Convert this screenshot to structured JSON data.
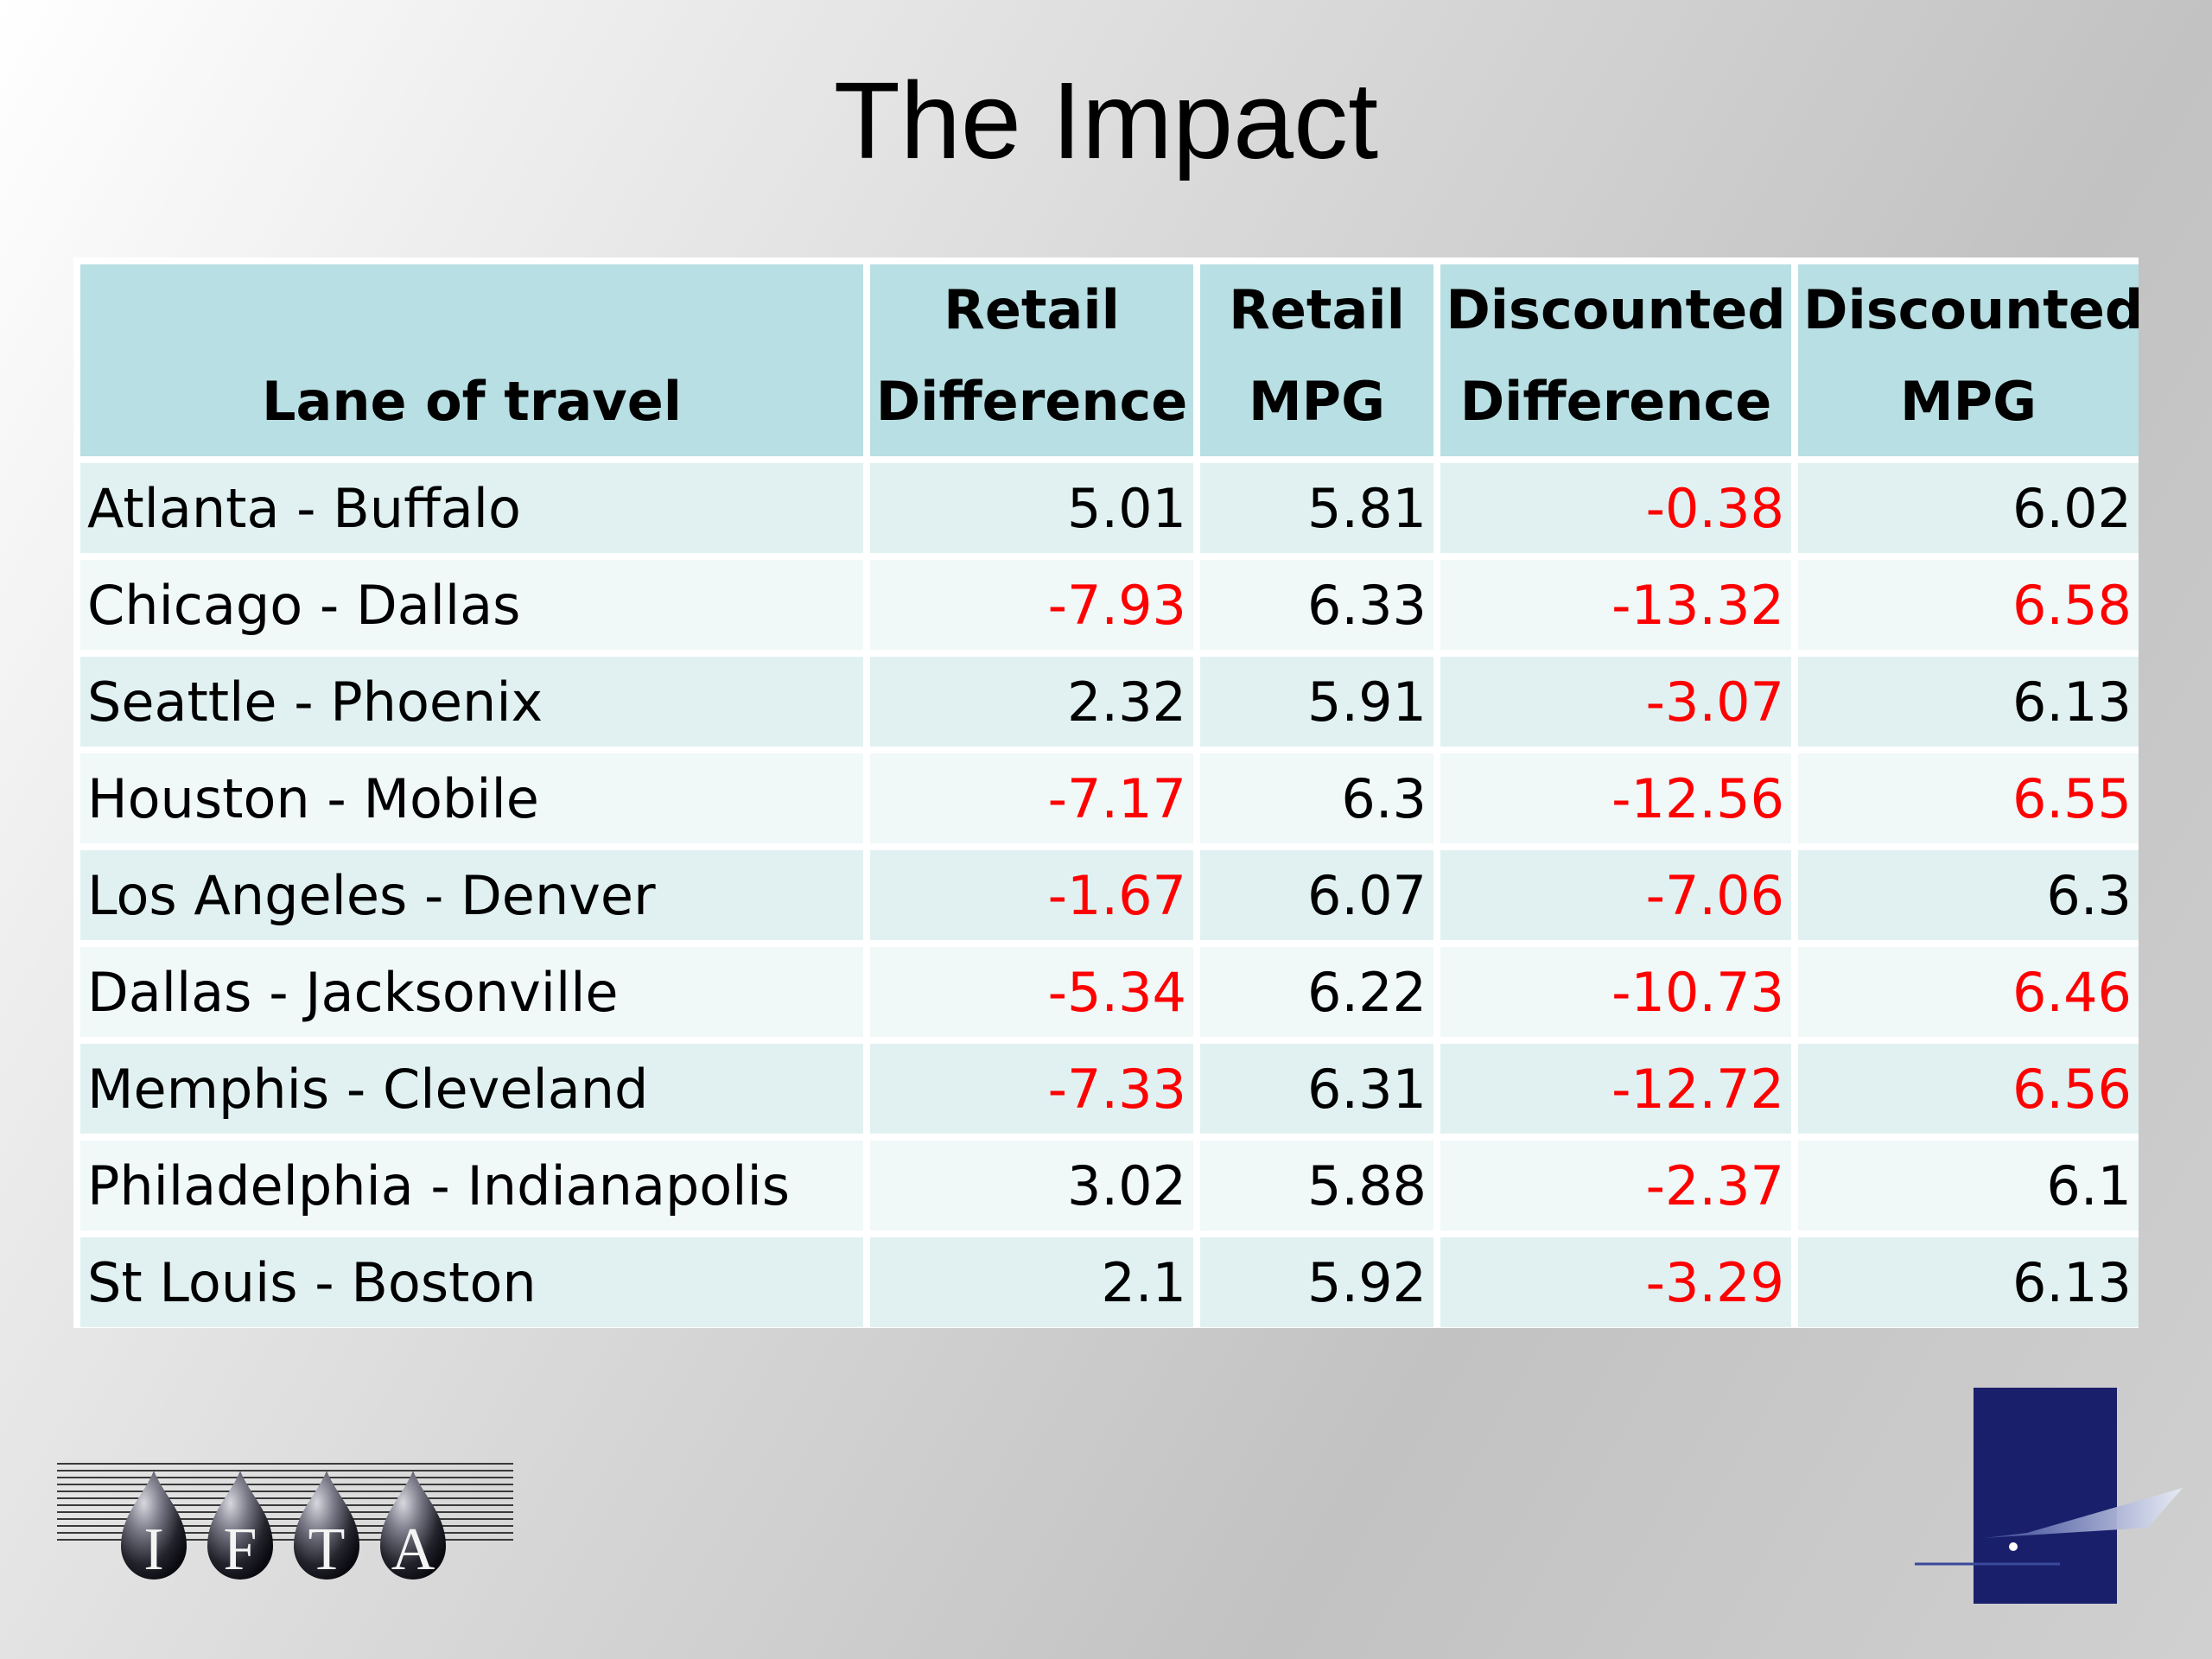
{
  "slide": {
    "title": "The Impact"
  },
  "table": {
    "headers": [
      {
        "line1": "",
        "line2": "Lane of travel"
      },
      {
        "line1": "Retail",
        "line2": "Difference"
      },
      {
        "line1": "Retail",
        "line2": "MPG"
      },
      {
        "line1": "Discounted",
        "line2": "Difference"
      },
      {
        "line1": "Discounted",
        "line2": "MPG"
      }
    ],
    "rows": [
      {
        "lane": "Atlanta - Buffalo",
        "retail_diff": "5.01",
        "retail_mpg": "5.81",
        "disc_diff": "-0.38",
        "disc_mpg": "6.02",
        "disc_mpg_red": false
      },
      {
        "lane": "Chicago - Dallas",
        "retail_diff": "-7.93",
        "retail_mpg": "6.33",
        "disc_diff": "-13.32",
        "disc_mpg": "6.58",
        "disc_mpg_red": true
      },
      {
        "lane": "Seattle  - Phoenix",
        "retail_diff": "2.32",
        "retail_mpg": "5.91",
        "disc_diff": "-3.07",
        "disc_mpg": "6.13",
        "disc_mpg_red": false
      },
      {
        "lane": "Houston - Mobile",
        "retail_diff": "-7.17",
        "retail_mpg": "6.3",
        "disc_diff": "-12.56",
        "disc_mpg": "6.55",
        "disc_mpg_red": true
      },
      {
        "lane": "Los Angeles - Denver",
        "retail_diff": "-1.67",
        "retail_mpg": "6.07",
        "disc_diff": "-7.06",
        "disc_mpg": "6.3",
        "disc_mpg_red": false
      },
      {
        "lane": "Dallas - Jacksonville",
        "retail_diff": "-5.34",
        "retail_mpg": "6.22",
        "disc_diff": "-10.73",
        "disc_mpg": "6.46",
        "disc_mpg_red": true
      },
      {
        "lane": "Memphis - Cleveland",
        "retail_diff": "-7.33",
        "retail_mpg": "6.31",
        "disc_diff": "-12.72",
        "disc_mpg": "6.56",
        "disc_mpg_red": true
      },
      {
        "lane": "Philadelphia - Indianapolis",
        "retail_diff": "3.02",
        "retail_mpg": "5.88",
        "disc_diff": "-2.37",
        "disc_mpg": "6.1",
        "disc_mpg_red": false
      },
      {
        "lane": "St Louis - Boston",
        "retail_diff": "2.1",
        "retail_mpg": "5.92",
        "disc_diff": "-3.29",
        "disc_mpg": "6.13",
        "disc_mpg_red": false
      }
    ]
  },
  "logos": {
    "ifta_letters": [
      "I",
      "F",
      "T",
      "A"
    ]
  },
  "colors": {
    "header_bg": "#b8dfe3",
    "row_odd": "#e1f1f2",
    "row_even": "#f0f8f8",
    "negative": "#ff0000",
    "corner_logo_blue": "#1a1f6b"
  }
}
